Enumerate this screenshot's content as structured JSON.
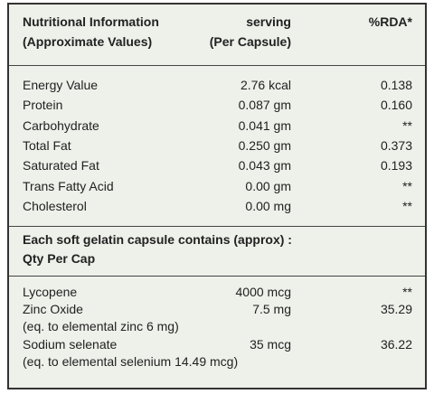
{
  "header": {
    "name": [
      "Nutritional Information",
      "(Approximate Values)"
    ],
    "serving": [
      "serving",
      "(Per Capsule)"
    ],
    "rda": "%RDA*"
  },
  "nutrients": [
    [
      "Energy Value",
      "2.76 kcal",
      "0.138"
    ],
    [
      "Protein",
      "0.087 gm",
      "0.160"
    ],
    [
      "Carbohydrate",
      "0.041 gm",
      "**"
    ],
    [
      "Total Fat",
      "0.250 gm",
      "0.373"
    ],
    [
      "Saturated Fat",
      "0.043 gm",
      "0.193"
    ],
    [
      "Trans Fatty Acid",
      "0.00 gm",
      "**"
    ],
    [
      "Cholesterol",
      "0.00 mg",
      "**"
    ]
  ],
  "section": {
    "title": "Each soft gelatin capsule contains (approx) :",
    "subtitle": "Qty Per Cap"
  },
  "ingredients": [
    {
      "name": "Lycopene",
      "qty": "4000 mcg",
      "rda": "**"
    },
    {
      "name": "Zinc Oxide",
      "qty": "7.5 mg",
      "rda": "35.29",
      "note": "(eq. to elemental zinc 6 mg)"
    },
    {
      "name": "Sodium selenate",
      "qty": "35 mcg",
      "rda": "36.22",
      "note": "(eq. to elemental selenium 14.49 mcg)"
    }
  ]
}
